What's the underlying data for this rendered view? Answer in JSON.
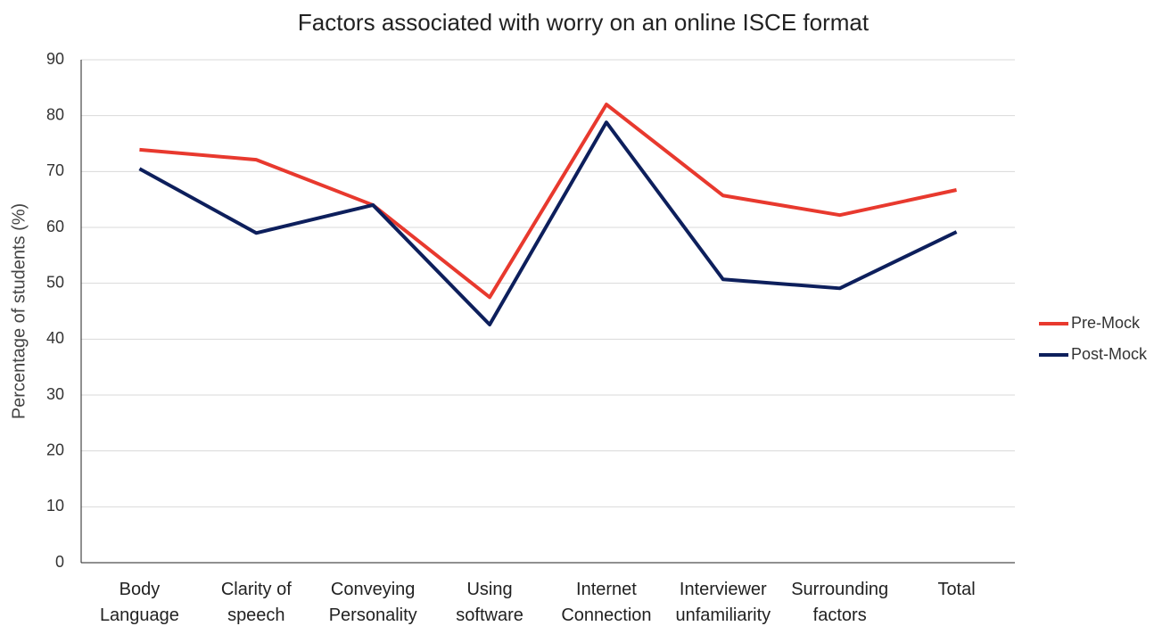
{
  "chart_data": {
    "type": "line",
    "title": "Factors associated with worry on an online ISCE format",
    "y_label": "Percentage of students (%)",
    "categories": [
      "Body Language",
      "Clarity of speech",
      "Conveying Personality",
      "Using software",
      "Internet Connection",
      "Interviewer unfamiliarity",
      "Surrounding factors",
      "Total"
    ],
    "series": [
      {
        "name": "Pre-Mock",
        "color": "#e8392e",
        "values": [
          73.9,
          72.1,
          64,
          47.5,
          82,
          65.7,
          62.2,
          66.7
        ]
      },
      {
        "name": "Post-Mock",
        "color": "#0d1f5c",
        "values": [
          70.5,
          59,
          64,
          42.6,
          78.8,
          50.7,
          49.1,
          59.2
        ]
      }
    ],
    "ylim": [
      0,
      90
    ],
    "yticks": [
      0,
      10,
      20,
      30,
      40,
      50,
      60,
      70,
      80,
      90
    ],
    "grid": true,
    "legend": "right"
  }
}
